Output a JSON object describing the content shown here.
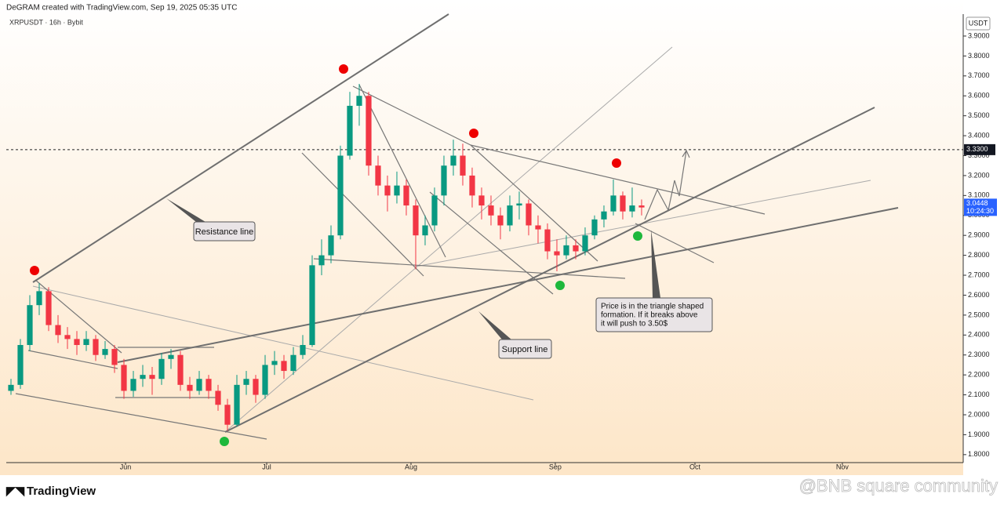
{
  "header": "DeGRAM created with TradingView.com, Sep 19, 2025 05:35 UTC",
  "chart_data": {
    "type": "candlestick",
    "title": "XRPUSDT · 16h · Bybit",
    "currency": "USDT",
    "up_color": "#089981",
    "down_color": "#f23645",
    "categories": [
      null,
      null,
      null,
      null,
      null,
      null,
      null,
      null,
      null,
      null,
      null,
      null,
      null,
      null,
      null,
      null,
      null,
      null,
      null,
      null,
      null,
      null,
      null,
      null,
      null,
      null,
      null,
      null,
      null,
      null,
      null,
      null,
      null,
      null,
      null,
      null,
      null,
      null,
      null,
      null,
      null,
      null,
      null,
      null,
      null,
      null,
      null,
      null,
      null,
      null,
      null,
      null,
      null,
      null,
      null,
      null,
      null,
      null,
      null,
      null,
      null,
      null,
      null,
      null,
      null,
      null,
      null,
      null
    ],
    "open": [
      2.12,
      2.15,
      2.35,
      2.55,
      2.62,
      2.45,
      2.4,
      2.38,
      2.35,
      2.38,
      2.3,
      2.33,
      2.25,
      2.12,
      2.18,
      2.2,
      2.18,
      2.28,
      2.3,
      2.15,
      2.12,
      2.18,
      2.12,
      2.05,
      1.95,
      2.15,
      2.18,
      2.1,
      2.25,
      2.27,
      2.22,
      2.3,
      2.35,
      2.75,
      2.8,
      2.9,
      3.3,
      3.55,
      3.6,
      3.25,
      3.15,
      3.1,
      3.15,
      3.05,
      2.9,
      2.95,
      3.1,
      3.25,
      3.3,
      3.2,
      3.1,
      3.05,
      3.0,
      2.95,
      3.05,
      3.06,
      2.95,
      2.93,
      2.82,
      2.8,
      2.85,
      2.82,
      2.9,
      2.98,
      3.02,
      3.1,
      3.02,
      3.05
    ],
    "high": [
      2.18,
      2.38,
      2.6,
      2.66,
      2.64,
      2.5,
      2.44,
      2.42,
      2.42,
      2.4,
      2.37,
      2.35,
      2.28,
      2.22,
      2.25,
      2.24,
      2.31,
      2.33,
      2.32,
      2.19,
      2.22,
      2.2,
      2.15,
      2.08,
      2.2,
      2.22,
      2.2,
      2.3,
      2.32,
      2.3,
      2.34,
      2.4,
      2.8,
      2.88,
      2.95,
      3.35,
      3.62,
      3.66,
      3.62,
      3.3,
      3.2,
      3.22,
      3.18,
      3.08,
      3.0,
      3.14,
      3.3,
      3.38,
      3.36,
      3.24,
      3.14,
      3.1,
      3.04,
      3.1,
      3.12,
      3.08,
      3.0,
      2.96,
      2.88,
      2.9,
      2.88,
      2.94,
      3.0,
      3.05,
      3.18,
      3.12,
      3.14,
      3.08
    ],
    "low": [
      2.1,
      2.13,
      2.32,
      2.5,
      2.42,
      2.36,
      2.33,
      2.3,
      2.32,
      2.27,
      2.28,
      2.21,
      2.08,
      2.09,
      2.14,
      2.1,
      2.15,
      2.23,
      2.12,
      2.08,
      2.1,
      2.08,
      2.02,
      1.92,
      1.94,
      2.1,
      2.06,
      2.08,
      2.2,
      2.18,
      2.2,
      2.28,
      2.34,
      2.7,
      2.76,
      2.88,
      3.28,
      3.45,
      3.2,
      3.1,
      3.02,
      3.06,
      3.0,
      2.73,
      2.85,
      2.92,
      3.05,
      3.2,
      3.15,
      3.04,
      2.98,
      2.95,
      2.88,
      2.92,
      2.98,
      2.9,
      2.86,
      2.78,
      2.72,
      2.78,
      2.78,
      2.8,
      2.88,
      2.94,
      3.0,
      2.98,
      2.99,
      3.0
    ],
    "close": [
      2.15,
      2.35,
      2.55,
      2.62,
      2.45,
      2.4,
      2.38,
      2.35,
      2.38,
      2.3,
      2.33,
      2.25,
      2.12,
      2.18,
      2.2,
      2.18,
      2.28,
      2.3,
      2.15,
      2.12,
      2.18,
      2.12,
      2.05,
      1.95,
      2.15,
      2.18,
      2.1,
      2.25,
      2.27,
      2.22,
      2.3,
      2.35,
      2.75,
      2.8,
      2.9,
      3.3,
      3.55,
      3.6,
      3.25,
      3.15,
      3.1,
      3.15,
      3.05,
      2.9,
      2.95,
      3.1,
      3.25,
      3.3,
      3.2,
      3.1,
      3.05,
      3.0,
      2.95,
      3.05,
      3.06,
      2.95,
      2.93,
      2.82,
      2.8,
      2.85,
      2.82,
      2.9,
      2.98,
      3.02,
      3.1,
      3.02,
      3.05,
      3.04
    ],
    "xlim": [
      0,
      101.67
    ],
    "xticks": [
      {
        "value": 12.67,
        "label": "Jun"
      },
      {
        "value": 27.67,
        "label": "Jul"
      },
      {
        "value": 43,
        "label": "Aug"
      },
      {
        "value": 58.33,
        "label": "Sep"
      },
      {
        "value": 73.17,
        "label": "Oct"
      },
      {
        "value": 88.83,
        "label": "Nov"
      }
    ],
    "ylim": [
      1.76,
      4.01
    ],
    "yticks": [
      {
        "value": 1.8,
        "label": "1.8000"
      },
      {
        "value": 1.9,
        "label": "1.9000"
      },
      {
        "value": 2.0,
        "label": "2.0000"
      },
      {
        "value": 2.1,
        "label": "2.1000"
      },
      {
        "value": 2.2,
        "label": "2.2000"
      },
      {
        "value": 2.3,
        "label": "2.3000"
      },
      {
        "value": 2.4,
        "label": "2.4000"
      },
      {
        "value": 2.5,
        "label": "2.5000"
      },
      {
        "value": 2.6,
        "label": "2.6000"
      },
      {
        "value": 2.7,
        "label": "2.7000"
      },
      {
        "value": 2.8,
        "label": "2.8000"
      },
      {
        "value": 2.9,
        "label": "2.9000"
      },
      {
        "value": 3.0,
        "label": "3.0000"
      },
      {
        "value": 3.1,
        "label": "3.1000"
      },
      {
        "value": 3.2,
        "label": "3.2000"
      },
      {
        "value": 3.3,
        "label": "3.3000"
      },
      {
        "value": 3.4,
        "label": "3.4000"
      },
      {
        "value": 3.5,
        "label": "3.5000"
      },
      {
        "value": 3.6,
        "label": "3.6000"
      },
      {
        "value": 3.7,
        "label": "3.7000"
      },
      {
        "value": 3.8,
        "label": "3.8000"
      },
      {
        "value": 3.9,
        "label": "3.9000"
      }
    ],
    "level": {
      "value": 3.33,
      "label": "3.3300"
    },
    "last_price": 3.0448,
    "countdown": "10:24:30",
    "annotations": {
      "resistance": "Resistance line",
      "support": "Support line",
      "note": [
        "Price is in the triangle shaped",
        "formation. If it breaks above",
        "it will push to 3.50$"
      ]
    }
  },
  "footer": {
    "logo": "TradingView",
    "watermark": "@BNB square community"
  }
}
